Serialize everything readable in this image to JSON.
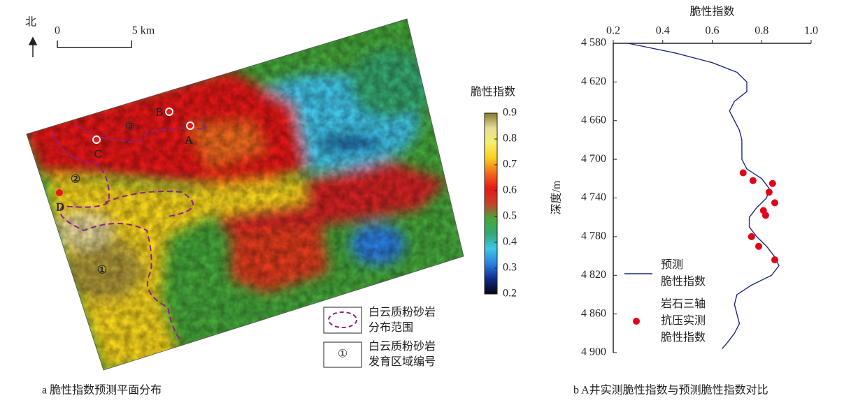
{
  "chart_data": [
    {
      "type": "map",
      "caption": "a 脆性指数预测平面分布",
      "north": "北",
      "scale_bar": [
        "0",
        "5 km"
      ],
      "well_labels": [
        "A",
        "B",
        "C",
        "D"
      ],
      "zone_labels": [
        "①",
        "②",
        "③"
      ],
      "boundary_color": "#8e1f8e",
      "colorbar": {
        "title": "脆性指数",
        "lim": [
          0.2,
          0.9
        ],
        "ticks": [
          0.2,
          0.3,
          0.4,
          0.5,
          0.6,
          0.7,
          0.8,
          0.9
        ],
        "colors": [
          "#05050f",
          "#0f2a8c",
          "#2a7fe0",
          "#3fc6ea",
          "#35a870",
          "#45a83a",
          "#c8402a",
          "#e81818",
          "#f06a1a",
          "#f9cf1c",
          "#f8ee6a",
          "#e8dd9a",
          "#8a7a28"
        ]
      },
      "legend": [
        {
          "label": "白云质粉砂岩\n分布范围"
        },
        {
          "symbol": "①",
          "label": "白云质粉砂岩\n发育区域编号"
        }
      ]
    },
    {
      "type": "line",
      "xlabel": "脆性指数",
      "ylabel": "深度/m",
      "xlim": [
        0.2,
        1.0
      ],
      "xticks": [
        0.2,
        0.4,
        0.6,
        0.8,
        {
          "value": 1.0,
          "label": "1.0"
        }
      ],
      "ylim": [
        4580,
        4900
      ],
      "y_inverted": true,
      "yticks": [
        {
          "value": 4580,
          "label": "4 580"
        },
        {
          "value": 4620,
          "label": "4 620"
        },
        {
          "value": 4660,
          "label": "4 660"
        },
        {
          "value": 4700,
          "label": "4 700"
        },
        {
          "value": 4740,
          "label": "4 740"
        },
        {
          "value": 4780,
          "label": "4 780"
        },
        {
          "value": 4820,
          "label": "4 820"
        },
        {
          "value": 4860,
          "label": "4 860"
        },
        {
          "value": 4900,
          "label": "4 900"
        }
      ],
      "series": [
        {
          "name": "预测\n脆性指数",
          "kind": "line",
          "color": "#1c2a80",
          "depth": [
            4580,
            4590,
            4600,
            4610,
            4620,
            4630,
            4640,
            4650,
            4660,
            4670,
            4680,
            4690,
            4700,
            4710,
            4720,
            4730,
            4740,
            4750,
            4760,
            4770,
            4780,
            4790,
            4800,
            4810,
            4820,
            4830,
            4840,
            4850,
            4860,
            4870,
            4880,
            4890,
            4896
          ],
          "values": [
            0.26,
            0.45,
            0.6,
            0.7,
            0.74,
            0.74,
            0.69,
            0.67,
            0.69,
            0.71,
            0.72,
            0.72,
            0.72,
            0.74,
            0.8,
            0.83,
            0.82,
            0.78,
            0.75,
            0.75,
            0.78,
            0.82,
            0.85,
            0.87,
            0.84,
            0.76,
            0.7,
            0.69,
            0.7,
            0.71,
            0.69,
            0.66,
            0.64
          ]
        },
        {
          "name": "岩石三轴\n抗压实测\n脆性指数",
          "kind": "scatter",
          "color": "#e3001b",
          "depth": [
            4714,
            4722,
            4725,
            4734,
            4745,
            4753,
            4758,
            4780,
            4790,
            4804
          ],
          "values": [
            0.725,
            0.765,
            0.844,
            0.83,
            0.853,
            0.807,
            0.816,
            0.759,
            0.788,
            0.853
          ]
        }
      ],
      "caption": "b A井实测脆性指数与预测脆性指数对比"
    }
  ]
}
